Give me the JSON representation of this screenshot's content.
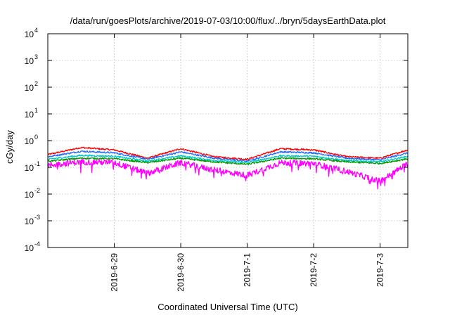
{
  "chart_data": {
    "type": "line",
    "title": "/data/run/goesPlots/archive/2019-07-03/10:00/flux/../bryn/5daysEarthData.plot",
    "xlabel": "Coordinated Universal Time (UTC)",
    "ylabel": "cGy/day",
    "yscale": "log",
    "ylim": [
      0.0001,
      10000
    ],
    "xlim": [
      "2019-06-28 00:00",
      "2019-07-03 10:00"
    ],
    "grid": true,
    "x_ticks": [
      "2019-6-29",
      "2019-6-30",
      "2019-7-1",
      "2019-7-2",
      "2019-7-3"
    ],
    "y_ticks": [
      {
        "base": "10",
        "exp": "-4"
      },
      {
        "base": "10",
        "exp": "-3"
      },
      {
        "base": "10",
        "exp": "-2"
      },
      {
        "base": "10",
        "exp": "-1"
      },
      {
        "base": "10",
        "exp": "0"
      },
      {
        "base": "10",
        "exp": "1"
      },
      {
        "base": "10",
        "exp": "2"
      },
      {
        "base": "10",
        "exp": "3"
      },
      {
        "base": "10",
        "exp": "4"
      }
    ],
    "series": [
      {
        "color": "#ff0000",
        "x": [
          "2019-06-28 00:00",
          "2019-06-28 12:00",
          "2019-06-29 00:00",
          "2019-06-29 12:00",
          "2019-06-30 00:00",
          "2019-06-30 12:00",
          "2019-07-01 00:00",
          "2019-07-01 12:00",
          "2019-07-02 00:00",
          "2019-07-02 12:00",
          "2019-07-03 00:00",
          "2019-07-03 10:00"
        ],
        "y": [
          0.3,
          0.55,
          0.45,
          0.22,
          0.5,
          0.25,
          0.2,
          0.5,
          0.45,
          0.25,
          0.22,
          0.45
        ]
      },
      {
        "color": "#1e6cff",
        "x": [
          "2019-06-28 00:00",
          "2019-06-28 12:00",
          "2019-06-29 00:00",
          "2019-06-29 12:00",
          "2019-06-30 00:00",
          "2019-06-30 12:00",
          "2019-07-01 00:00",
          "2019-07-01 12:00",
          "2019-07-02 00:00",
          "2019-07-02 12:00",
          "2019-07-03 00:00",
          "2019-07-03 10:00"
        ],
        "y": [
          0.25,
          0.4,
          0.35,
          0.2,
          0.38,
          0.22,
          0.17,
          0.38,
          0.35,
          0.22,
          0.19,
          0.35
        ]
      },
      {
        "color": "#00c8c8",
        "x": [
          "2019-06-28 00:00",
          "2019-06-28 12:00",
          "2019-06-29 00:00",
          "2019-06-29 12:00",
          "2019-06-30 00:00",
          "2019-06-30 12:00",
          "2019-07-01 00:00",
          "2019-07-01 12:00",
          "2019-07-02 00:00",
          "2019-07-02 12:00",
          "2019-07-03 00:00",
          "2019-07-03 10:00"
        ],
        "y": [
          0.2,
          0.28,
          0.26,
          0.17,
          0.27,
          0.18,
          0.15,
          0.27,
          0.26,
          0.18,
          0.16,
          0.26
        ]
      },
      {
        "color": "#009900",
        "x": [
          "2019-06-28 00:00",
          "2019-06-28 12:00",
          "2019-06-29 00:00",
          "2019-06-29 12:00",
          "2019-06-30 00:00",
          "2019-06-30 12:00",
          "2019-07-01 00:00",
          "2019-07-01 12:00",
          "2019-07-02 00:00",
          "2019-07-02 12:00",
          "2019-07-03 00:00",
          "2019-07-03 10:00"
        ],
        "y": [
          0.17,
          0.22,
          0.21,
          0.15,
          0.22,
          0.16,
          0.13,
          0.22,
          0.21,
          0.16,
          0.14,
          0.21
        ]
      },
      {
        "color": "#ff00ff",
        "x": [
          "2019-06-28 00:00",
          "2019-06-28 12:00",
          "2019-06-29 00:00",
          "2019-06-29 12:00",
          "2019-06-30 00:00",
          "2019-06-30 12:00",
          "2019-07-01 00:00",
          "2019-07-01 12:00",
          "2019-07-02 00:00",
          "2019-07-02 12:00",
          "2019-07-03 00:00",
          "2019-07-03 10:00"
        ],
        "y": [
          0.12,
          0.16,
          0.15,
          0.06,
          0.15,
          0.08,
          0.05,
          0.15,
          0.14,
          0.07,
          0.03,
          0.14
        ]
      }
    ]
  }
}
